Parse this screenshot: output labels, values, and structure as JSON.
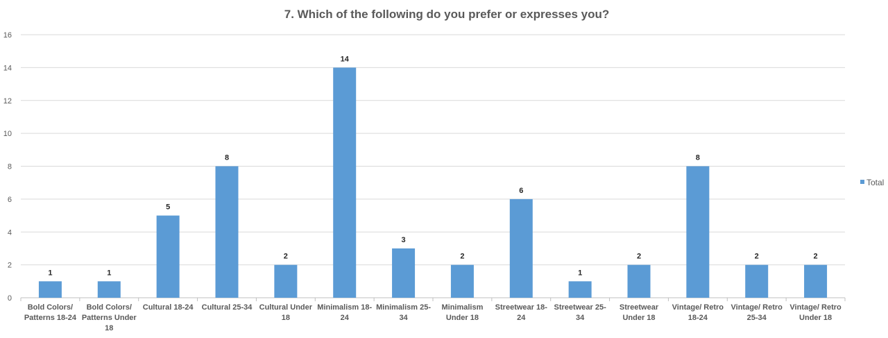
{
  "chart_data": {
    "type": "bar",
    "title": "7. Which of the following do you prefer or expresses you?",
    "categories": [
      [
        "Bold Colors/",
        "Patterns 18-24"
      ],
      [
        "Bold Colors/",
        "Patterns Under",
        "18"
      ],
      [
        "Cultural 18-24"
      ],
      [
        "Cultural 25-34"
      ],
      [
        "Cultural Under",
        "18"
      ],
      [
        "Minimalism 18-",
        "24"
      ],
      [
        "Minimalism 25-",
        "34"
      ],
      [
        "Minimalism",
        "Under 18"
      ],
      [
        "Streetwear 18-",
        "24"
      ],
      [
        "Streetwear 25-",
        "34"
      ],
      [
        "Streetwear",
        "Under 18"
      ],
      [
        "Vintage/ Retro",
        "18-24"
      ],
      [
        "Vintage/ Retro",
        "25-34"
      ],
      [
        "Vintage/ Retro",
        "Under 18"
      ]
    ],
    "series": [
      {
        "name": "Total",
        "values": [
          1,
          1,
          5,
          8,
          2,
          14,
          3,
          2,
          6,
          1,
          2,
          8,
          2,
          2
        ],
        "color": "#5b9bd5"
      }
    ],
    "xlabel": "",
    "ylabel": "",
    "ylim": [
      0,
      16
    ],
    "yticks": [
      "0",
      "2",
      "4",
      "6",
      "8",
      "10",
      "12",
      "14",
      "16"
    ],
    "grid": true,
    "legend_position": "right",
    "colors": {
      "bar": "#5b9bd5",
      "grid": "#d9d9d9",
      "text": "#595959",
      "label": "#262626",
      "axis": "#bfbfbf"
    }
  }
}
